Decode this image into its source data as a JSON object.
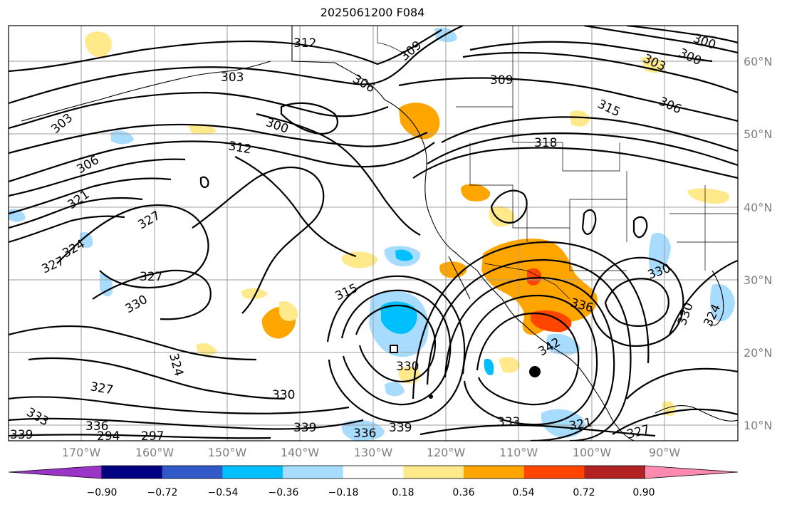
{
  "title": "2025061200 F084",
  "lat_labels": [
    "60°N",
    "50°N",
    "40°N",
    "30°N",
    "20°N",
    "10°N"
  ],
  "lon_labels": [
    "170°W",
    "160°W",
    "150°W",
    "140°W",
    "130°W",
    "120°W",
    "110°W",
    "100°W",
    "90°W"
  ],
  "contour_labels": [
    "312",
    "309",
    "309",
    "303",
    "306",
    "303",
    "300",
    "306",
    "303",
    "300",
    "312",
    "315",
    "318",
    "306",
    "321",
    "327",
    "324",
    "327",
    "327",
    "330",
    "315",
    "330",
    "330",
    "336",
    "342",
    "330",
    "324",
    "324",
    "327",
    "330",
    "339",
    "333",
    "336",
    "339",
    "321",
    "327",
    "333",
    "336",
    "339",
    "294",
    "297",
    "300"
  ],
  "colorbar": {
    "tick_labels": [
      "−0.90",
      "−0.72",
      "−0.54",
      "−0.36",
      "−0.18",
      "0.18",
      "0.36",
      "0.54",
      "0.72",
      "0.90"
    ],
    "colors": [
      "#9a35c8",
      "#000080",
      "#3158c8",
      "#00bfff",
      "#a7dcff",
      "#ffffff",
      "#ffe98a",
      "#ffa500",
      "#ff4500",
      "#b22222",
      "#ff8ab0"
    ]
  },
  "storm_marker": "filled-circle"
}
